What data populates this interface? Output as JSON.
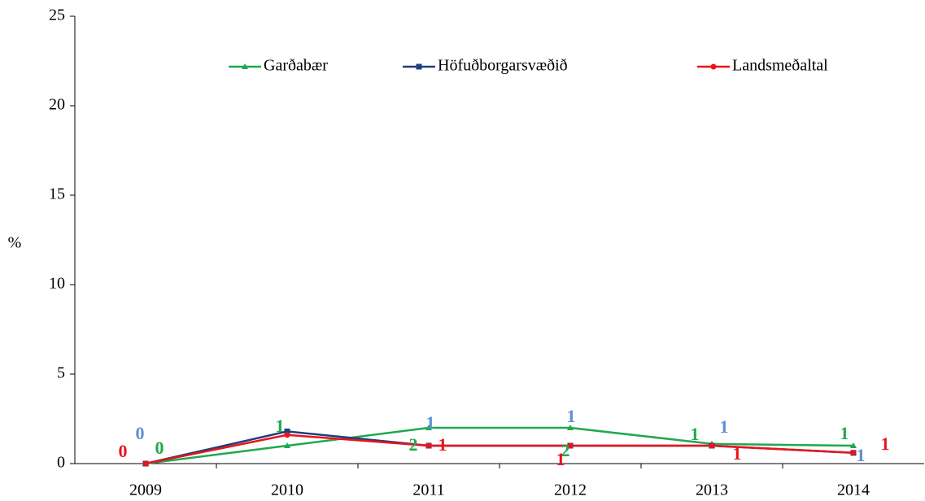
{
  "chart_data": {
    "type": "line",
    "y_label": "%",
    "categories": [
      "2009",
      "2010",
      "2011",
      "2012",
      "2013",
      "2014"
    ],
    "series": [
      {
        "name": "Garðabær",
        "color": "#1fa84f",
        "label_color": "#1fa84f",
        "marker": "triangle",
        "values": [
          0,
          1.0,
          2.0,
          2.0,
          1.1,
          1.0
        ],
        "value_labels": [
          "0",
          "1",
          "2",
          "2",
          "1",
          "1"
        ]
      },
      {
        "name": "Höfuðborgarsvæðið",
        "color": "#1f3f7a",
        "label_color": "#5b8fd0",
        "marker": "square",
        "values": [
          0,
          1.8,
          1.0,
          1.0,
          1.0,
          0.6
        ],
        "value_labels": [
          "0",
          null,
          "1",
          "1",
          "1",
          "1"
        ]
      },
      {
        "name": "Landsmeðaltal",
        "color": "#e8141c",
        "label_color": "#e8141c",
        "marker": "circle",
        "values": [
          0,
          1.6,
          1.0,
          1.0,
          1.0,
          0.6
        ],
        "value_labels": [
          "0",
          null,
          "1",
          "1",
          "1",
          "1"
        ]
      }
    ],
    "ylim": [
      0,
      25
    ],
    "yticks": [
      0,
      5,
      10,
      15,
      20,
      25
    ],
    "grid": false,
    "legend": "top"
  }
}
